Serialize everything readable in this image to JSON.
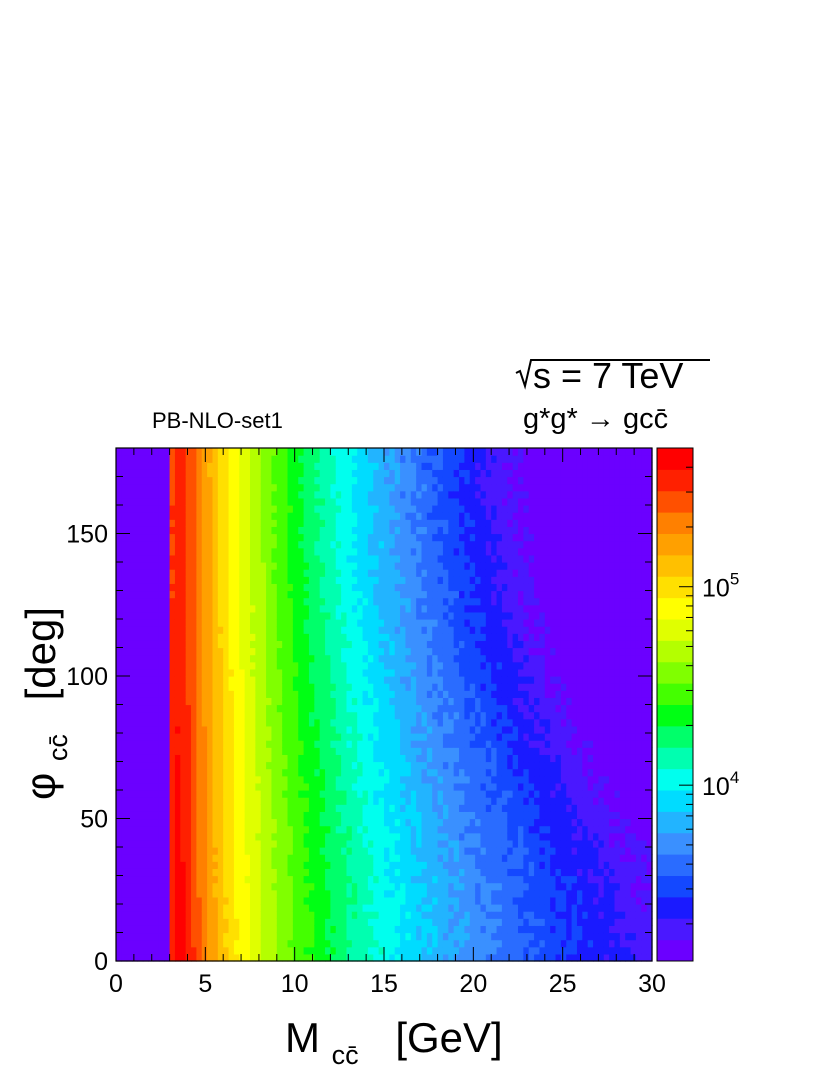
{
  "chart_data": {
    "type": "heatmap",
    "title_energy": "√s = 7 TeV",
    "title_energy_parts": {
      "sqrt_symbol": "√",
      "rest": "s = 7 TeV"
    },
    "title_process": "g*g* → gcc̄",
    "label_set": "PB-NLO-set1",
    "xlabel": "M",
    "xlabel_sub": "cc̄",
    "xlabel_unit": "[GeV]",
    "ylabel": "φ",
    "ylabel_sub": "cc̄",
    "ylabel_unit": "[deg]",
    "xlim": [
      0,
      30
    ],
    "ylim": [
      0,
      180
    ],
    "x_ticks": [
      "0",
      "5",
      "10",
      "15",
      "20",
      "25",
      "30"
    ],
    "y_ticks": [
      "0",
      "50",
      "100",
      "150"
    ],
    "z_scale": "log",
    "zlim": [
      1300,
      500000
    ],
    "colorbar_ticks": [
      {
        "base": "10",
        "exp": "4",
        "value": 10000
      },
      {
        "base": "10",
        "exp": "5",
        "value": 100000
      }
    ],
    "colors": [
      "#6b00ff",
      "#4a18ff",
      "#1a1aff",
      "#1448ff",
      "#2a6cff",
      "#3a90ff",
      "#22b4ff",
      "#00dcff",
      "#00ffee",
      "#00ffb0",
      "#00ff6a",
      "#00ff14",
      "#44ff00",
      "#80ff00",
      "#b4ff00",
      "#e0ff00",
      "#ffff00",
      "#ffe000",
      "#ffc000",
      "#ffa000",
      "#ff8000",
      "#ff5000",
      "#ff2000",
      "#ff0000"
    ],
    "description_values": {
      "threshold_mass": 2.9,
      "peak_mass": 3.6,
      "peak_value": 450000
    }
  }
}
